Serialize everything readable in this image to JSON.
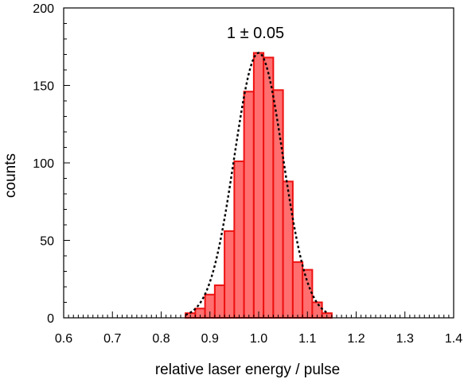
{
  "chart_data": {
    "type": "bar",
    "subtype": "histogram",
    "xlabel": "relative laser energy / pulse",
    "ylabel": "counts",
    "xlim": [
      0.6,
      1.4
    ],
    "ylim": [
      0,
      200
    ],
    "xticks": [
      "0.6",
      "0.7",
      "0.8",
      "0.9",
      "1.0",
      "1.1",
      "1.2",
      "1.3",
      "1.4"
    ],
    "yticks": [
      "0",
      "50",
      "100",
      "150",
      "200"
    ],
    "annotation": "1 ± 0.05",
    "bin_width": 0.02,
    "bins": [
      {
        "x": 0.86,
        "value": 3
      },
      {
        "x": 0.88,
        "value": 6
      },
      {
        "x": 0.9,
        "value": 15
      },
      {
        "x": 0.92,
        "value": 21
      },
      {
        "x": 0.94,
        "value": 56
      },
      {
        "x": 0.96,
        "value": 101
      },
      {
        "x": 0.98,
        "value": 146
      },
      {
        "x": 1.0,
        "value": 171
      },
      {
        "x": 1.02,
        "value": 168
      },
      {
        "x": 1.04,
        "value": 147
      },
      {
        "x": 1.06,
        "value": 88
      },
      {
        "x": 1.08,
        "value": 36
      },
      {
        "x": 1.1,
        "value": 31
      },
      {
        "x": 1.12,
        "value": 10
      },
      {
        "x": 1.14,
        "value": 3
      }
    ],
    "fit": {
      "type": "gaussian",
      "mean": 1.0,
      "sigma": 0.05,
      "amplitude": 171,
      "style": "dotted"
    },
    "colors": {
      "bar_fill": "#ff6f6f",
      "bar_stroke": "#ee1111",
      "fit": "#000000"
    },
    "grid": false,
    "legend": "none"
  }
}
